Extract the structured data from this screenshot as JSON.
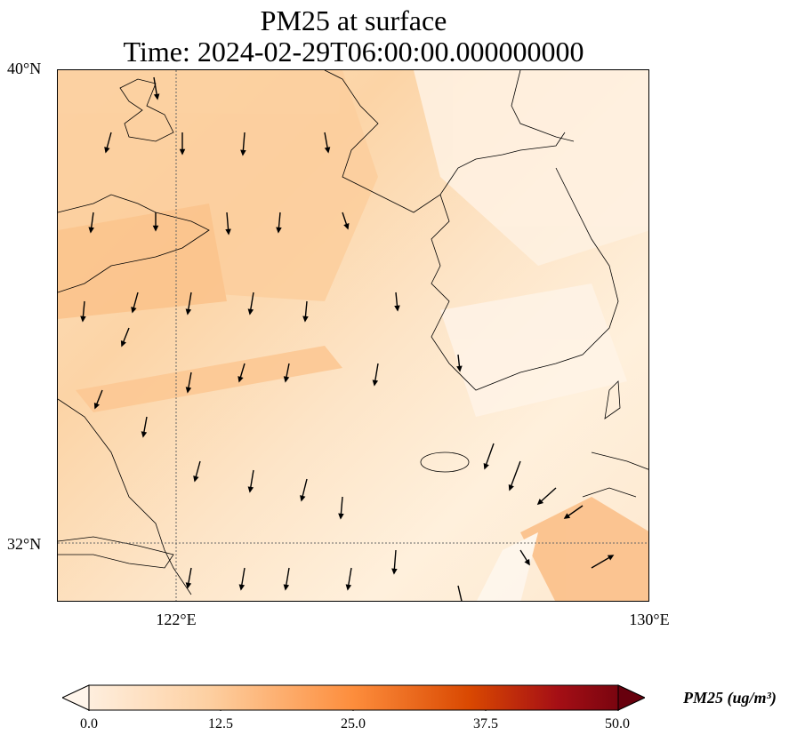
{
  "title": {
    "line1": "PM25 at surface",
    "line2": "Time: 2024-02-29T06:00:00.000000000"
  },
  "lat_labels": [
    "40°N",
    "32°N"
  ],
  "lon_labels": [
    "122°E",
    "130°E"
  ],
  "map": {
    "extent": {
      "lon_min": 120,
      "lon_max": 130,
      "lat_min": 31,
      "lat_max": 40
    },
    "gridlines": {
      "lons": [
        122,
        130
      ],
      "lats": [
        32,
        40
      ],
      "style": "dotted"
    },
    "colormap": "Oranges-to-dark-red",
    "wind_vectors": "south-southeast dominant"
  },
  "colorbar": {
    "min": 0.0,
    "max": 50.0,
    "ticks": [
      "0.0",
      "12.5",
      "25.0",
      "37.5",
      "50.0"
    ],
    "label": "PM25 (ug/m³)",
    "colors": [
      "#fff5eb",
      "#fdd0a2",
      "#fd8d3c",
      "#d94801",
      "#a50f15",
      "#67000d"
    ]
  }
}
